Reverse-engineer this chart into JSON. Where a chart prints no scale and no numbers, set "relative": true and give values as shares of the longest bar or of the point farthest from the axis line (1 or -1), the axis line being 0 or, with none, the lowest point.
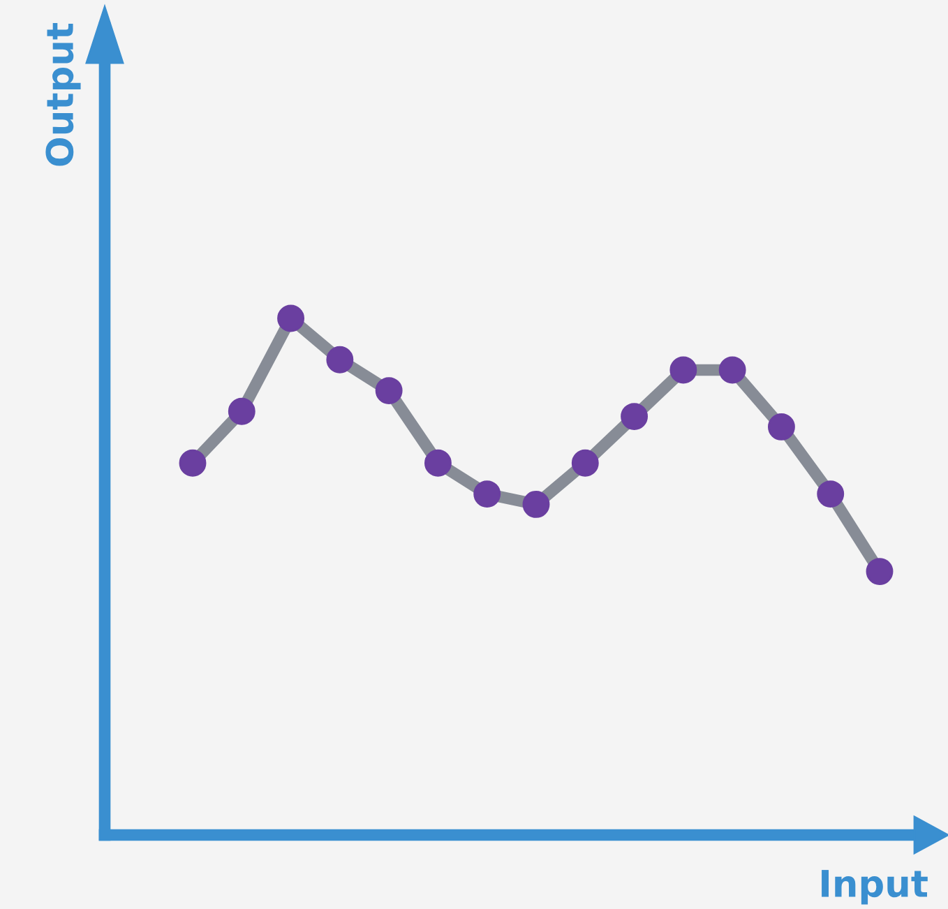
{
  "chart_data": {
    "type": "line",
    "xlabel": "Input",
    "ylabel": "Output",
    "relative": true,
    "categories": [
      null,
      null,
      null,
      null,
      null,
      null,
      null,
      null,
      null,
      null,
      null,
      null,
      null,
      null,
      null
    ],
    "series": [
      {
        "color": "#878c96",
        "values": [
          0.72,
          0.82,
          1,
          0.92,
          0.86,
          0.72,
          0.66,
          0.64,
          0.72,
          0.81,
          0.9,
          0.9,
          0.79,
          0.66,
          0.51
        ]
      }
    ],
    "marker": "circle",
    "line_style": "solid",
    "legend": false
  }
}
